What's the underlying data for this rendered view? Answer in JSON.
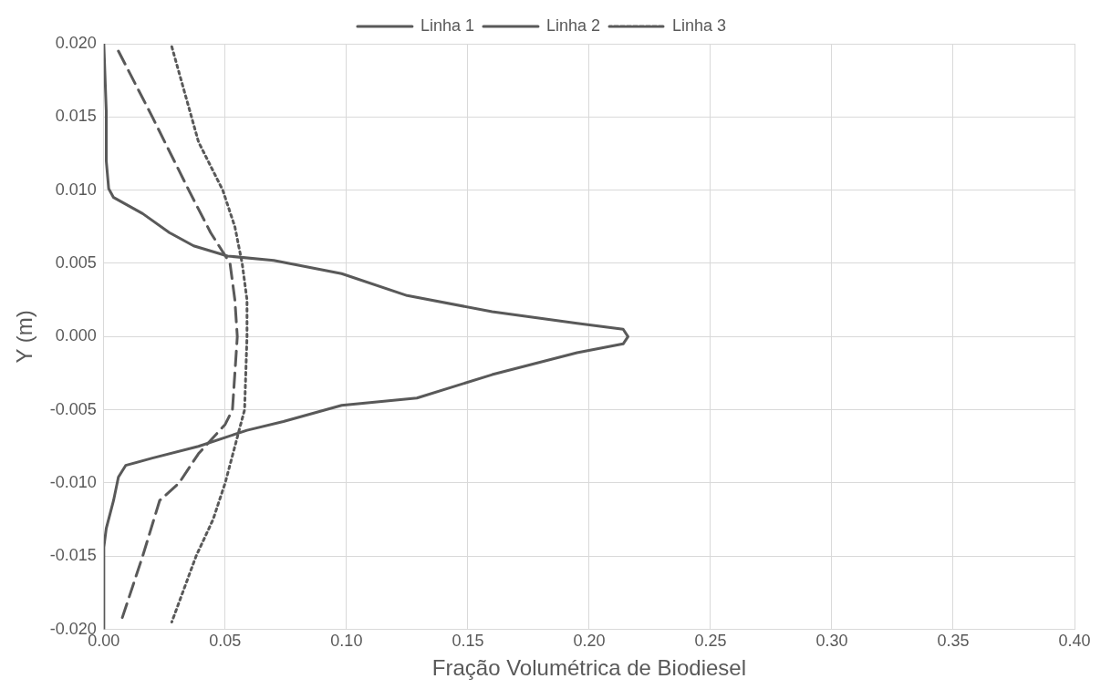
{
  "chart_data": {
    "type": "line",
    "xlabel": "Fração Volumétrica de Biodiesel",
    "ylabel": "Y (m)",
    "xlim": [
      0,
      0.4
    ],
    "xticks": [
      {
        "value": 0,
        "label": "0.00"
      },
      {
        "value": 0.05,
        "label": "0.05"
      },
      {
        "value": 0.1,
        "label": "0.10"
      },
      {
        "value": 0.15,
        "label": "0.15"
      },
      {
        "value": 0.2,
        "label": "0.20"
      },
      {
        "value": 0.25,
        "label": "0.25"
      },
      {
        "value": 0.3,
        "label": "0.30"
      },
      {
        "value": 0.35,
        "label": "0.35"
      },
      {
        "value": 0.4,
        "label": "0.40"
      }
    ],
    "ylim": [
      -0.02,
      0.02
    ],
    "yticks": [
      {
        "value": -0.02,
        "label": "-0.020"
      },
      {
        "value": -0.015,
        "label": "-0.015"
      },
      {
        "value": -0.01,
        "label": "-0.010"
      },
      {
        "value": -0.005,
        "label": "-0.005"
      },
      {
        "value": 0,
        "label": "0.000"
      },
      {
        "value": 0.005,
        "label": "0.005"
      },
      {
        "value": 0.01,
        "label": "0.010"
      },
      {
        "value": 0.015,
        "label": "0.015"
      },
      {
        "value": 0.02,
        "label": "0.020"
      }
    ],
    "grid": true,
    "legend": "top",
    "marker": "none",
    "series": [
      {
        "name": "Linha 1",
        "color": "#595959",
        "line_style": "solid",
        "x": [
          0,
          0.001,
          0.001,
          0.002,
          0.004,
          0.016,
          0.027,
          0.037,
          0.047,
          0.051,
          0.07,
          0.098,
          0.125,
          0.16,
          0.195,
          0.214,
          0.216,
          0.214,
          0.195,
          0.16,
          0.129,
          0.098,
          0.074,
          0.059,
          0.039,
          0.02,
          0.009,
          0.006,
          0.004,
          0.001,
          0,
          0
        ],
        "values": [
          0.02,
          0.0154,
          0.012,
          0.0101,
          0.0095,
          0.0084,
          0.0071,
          0.0062,
          0.0057,
          0.0055,
          0.0052,
          0.0043,
          0.0028,
          0.0017,
          0.0009,
          0.0005,
          0,
          -0.0005,
          -0.0011,
          -0.0026,
          -0.0042,
          -0.0047,
          -0.0058,
          -0.0064,
          -0.0075,
          -0.0083,
          -0.0088,
          -0.0096,
          -0.0112,
          -0.0131,
          -0.0144,
          -0.02
        ]
      },
      {
        "name": "Linha 2",
        "color": "#595959",
        "line_style": "dashed",
        "x": [
          0.006,
          0.02,
          0.035,
          0.044,
          0.052,
          0.054,
          0.055,
          0.054,
          0.053,
          0.05,
          0.039,
          0.031,
          0.023,
          0.016,
          0.007
        ],
        "values": [
          0.0195,
          0.015,
          0.01,
          0.0071,
          0.005,
          0.0025,
          0,
          -0.0025,
          -0.005,
          -0.006,
          -0.008,
          -0.01,
          -0.0112,
          -0.015,
          -0.0195
        ]
      },
      {
        "name": "Linha 3",
        "color": "#595959",
        "line_style": "dotted",
        "x": [
          0.028,
          0.039,
          0.049,
          0.054,
          0.057,
          0.059,
          0.059,
          0.058,
          0.054,
          0.05,
          0.045,
          0.038,
          0.028
        ],
        "values": [
          0.0198,
          0.0133,
          0.01,
          0.0075,
          0.005,
          0.0025,
          0,
          -0.005,
          -0.0075,
          -0.01,
          -0.0125,
          -0.015,
          -0.0195
        ]
      }
    ]
  }
}
